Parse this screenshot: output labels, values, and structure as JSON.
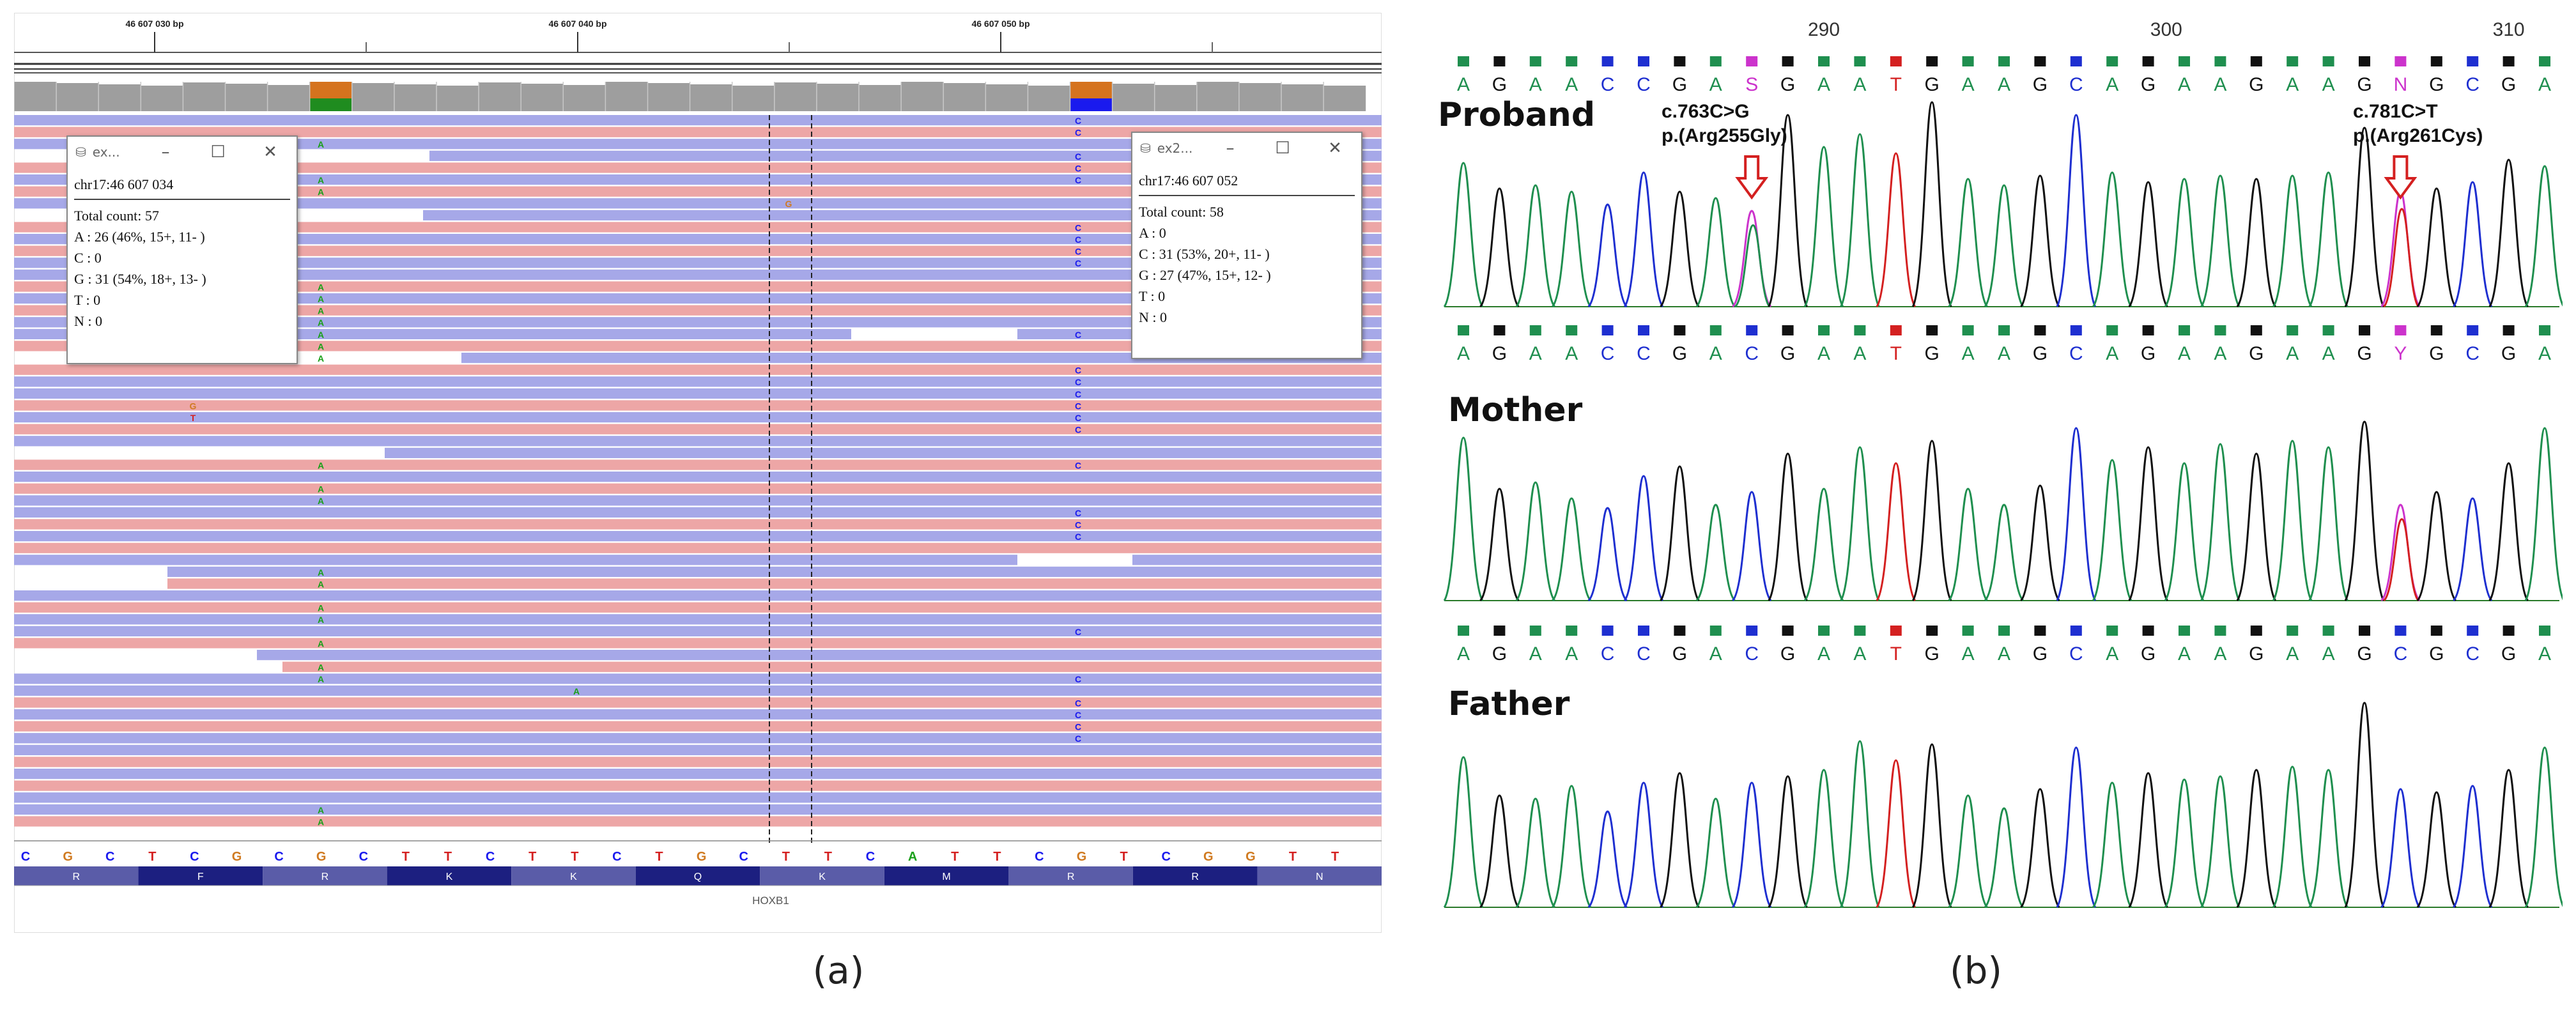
{
  "panel_a": {
    "label": "(a)",
    "ruler": {
      "ticks": [
        "46 607 030 bp",
        "46 607 040 bp",
        "46 607 050 bp"
      ]
    },
    "reference_bases": [
      "C",
      "G",
      "C",
      "T",
      "C",
      "G",
      "C",
      "G",
      "C",
      "T",
      "T",
      "C",
      "T",
      "T",
      "C",
      "T",
      "G",
      "C",
      "T",
      "T",
      "C",
      "A",
      "T",
      "T",
      "C",
      "G",
      "T",
      "C",
      "G",
      "G",
      "T",
      "T"
    ],
    "amino_acids": [
      "R",
      "F",
      "R",
      "K",
      "K",
      "Q",
      "K",
      "M",
      "R",
      "R",
      "N"
    ],
    "gene_label": "HOXB1",
    "mismatch_bases": {
      "left": "A",
      "right": "C",
      "mid": "G",
      "stray_a": "A",
      "stray_g": "G",
      "stray_t": "T"
    },
    "colors": {
      "read_pos": "#eda6a6",
      "read_neg": "#a6a8e8",
      "snp_orange": "#d5731e",
      "snp_green": "#1f8c1f",
      "snp_blue": "#1a1aee",
      "aa_dark": "#1c1f80",
      "aa_light": "#5a5ca8"
    },
    "popup_left": {
      "title": "ex...",
      "location": "chr17:46 607 034",
      "total": "Total count: 57",
      "a": "A : 26 (46%, 15+, 11- )",
      "c": "C : 0",
      "g": "G : 31 (54%, 18+, 13- )",
      "t": "T : 0",
      "n": "N : 0"
    },
    "popup_right": {
      "title": "ex2...",
      "location": "chr17:46 607 052",
      "total": "Total count: 58",
      "a": "A : 0",
      "c": "C : 31 (53%, 20+, 11- )",
      "g": "G : 27 (47%, 15+, 12- )",
      "t": "T : 0",
      "n": "N : 0"
    },
    "popup_controls": [
      "–",
      "☐",
      "✕"
    ]
  },
  "panel_b": {
    "label": "(b)",
    "positions": [
      "290",
      "300",
      "310"
    ],
    "tracks": [
      {
        "name": "Proband",
        "bases": [
          "A",
          "G",
          "A",
          "A",
          "C",
          "C",
          "G",
          "A",
          "S",
          "G",
          "A",
          "A",
          "T",
          "G",
          "A",
          "A",
          "G",
          "C",
          "A",
          "G",
          "A",
          "A",
          "G",
          "A",
          "A",
          "G",
          "N",
          "G",
          "C",
          "G",
          "A"
        ]
      },
      {
        "name": "Mother",
        "bases": [
          "A",
          "G",
          "A",
          "A",
          "C",
          "C",
          "G",
          "A",
          "C",
          "G",
          "A",
          "A",
          "T",
          "G",
          "A",
          "A",
          "G",
          "C",
          "A",
          "G",
          "A",
          "A",
          "G",
          "A",
          "A",
          "G",
          "Y",
          "G",
          "C",
          "G",
          "A"
        ]
      },
      {
        "name": "Father",
        "bases": [
          "A",
          "G",
          "A",
          "A",
          "C",
          "C",
          "G",
          "A",
          "C",
          "G",
          "A",
          "A",
          "T",
          "G",
          "A",
          "A",
          "G",
          "C",
          "A",
          "G",
          "A",
          "A",
          "G",
          "A",
          "A",
          "G",
          "C",
          "G",
          "C",
          "G",
          "A"
        ]
      }
    ],
    "variant1": {
      "line1": "c.763C>G",
      "line2": "p.(Arg255Gly)"
    },
    "variant2": {
      "line1": "c.781C>T",
      "line2": "p.(Arg261Cys)"
    },
    "colors": {
      "A": "#1f8f4f",
      "G": "#111111",
      "C": "#1e2fd0",
      "T": "#d42020",
      "S": "#cc33cc",
      "N": "#cc33cc",
      "Y": "#cc33cc",
      "arrow": "#d42020"
    }
  }
}
